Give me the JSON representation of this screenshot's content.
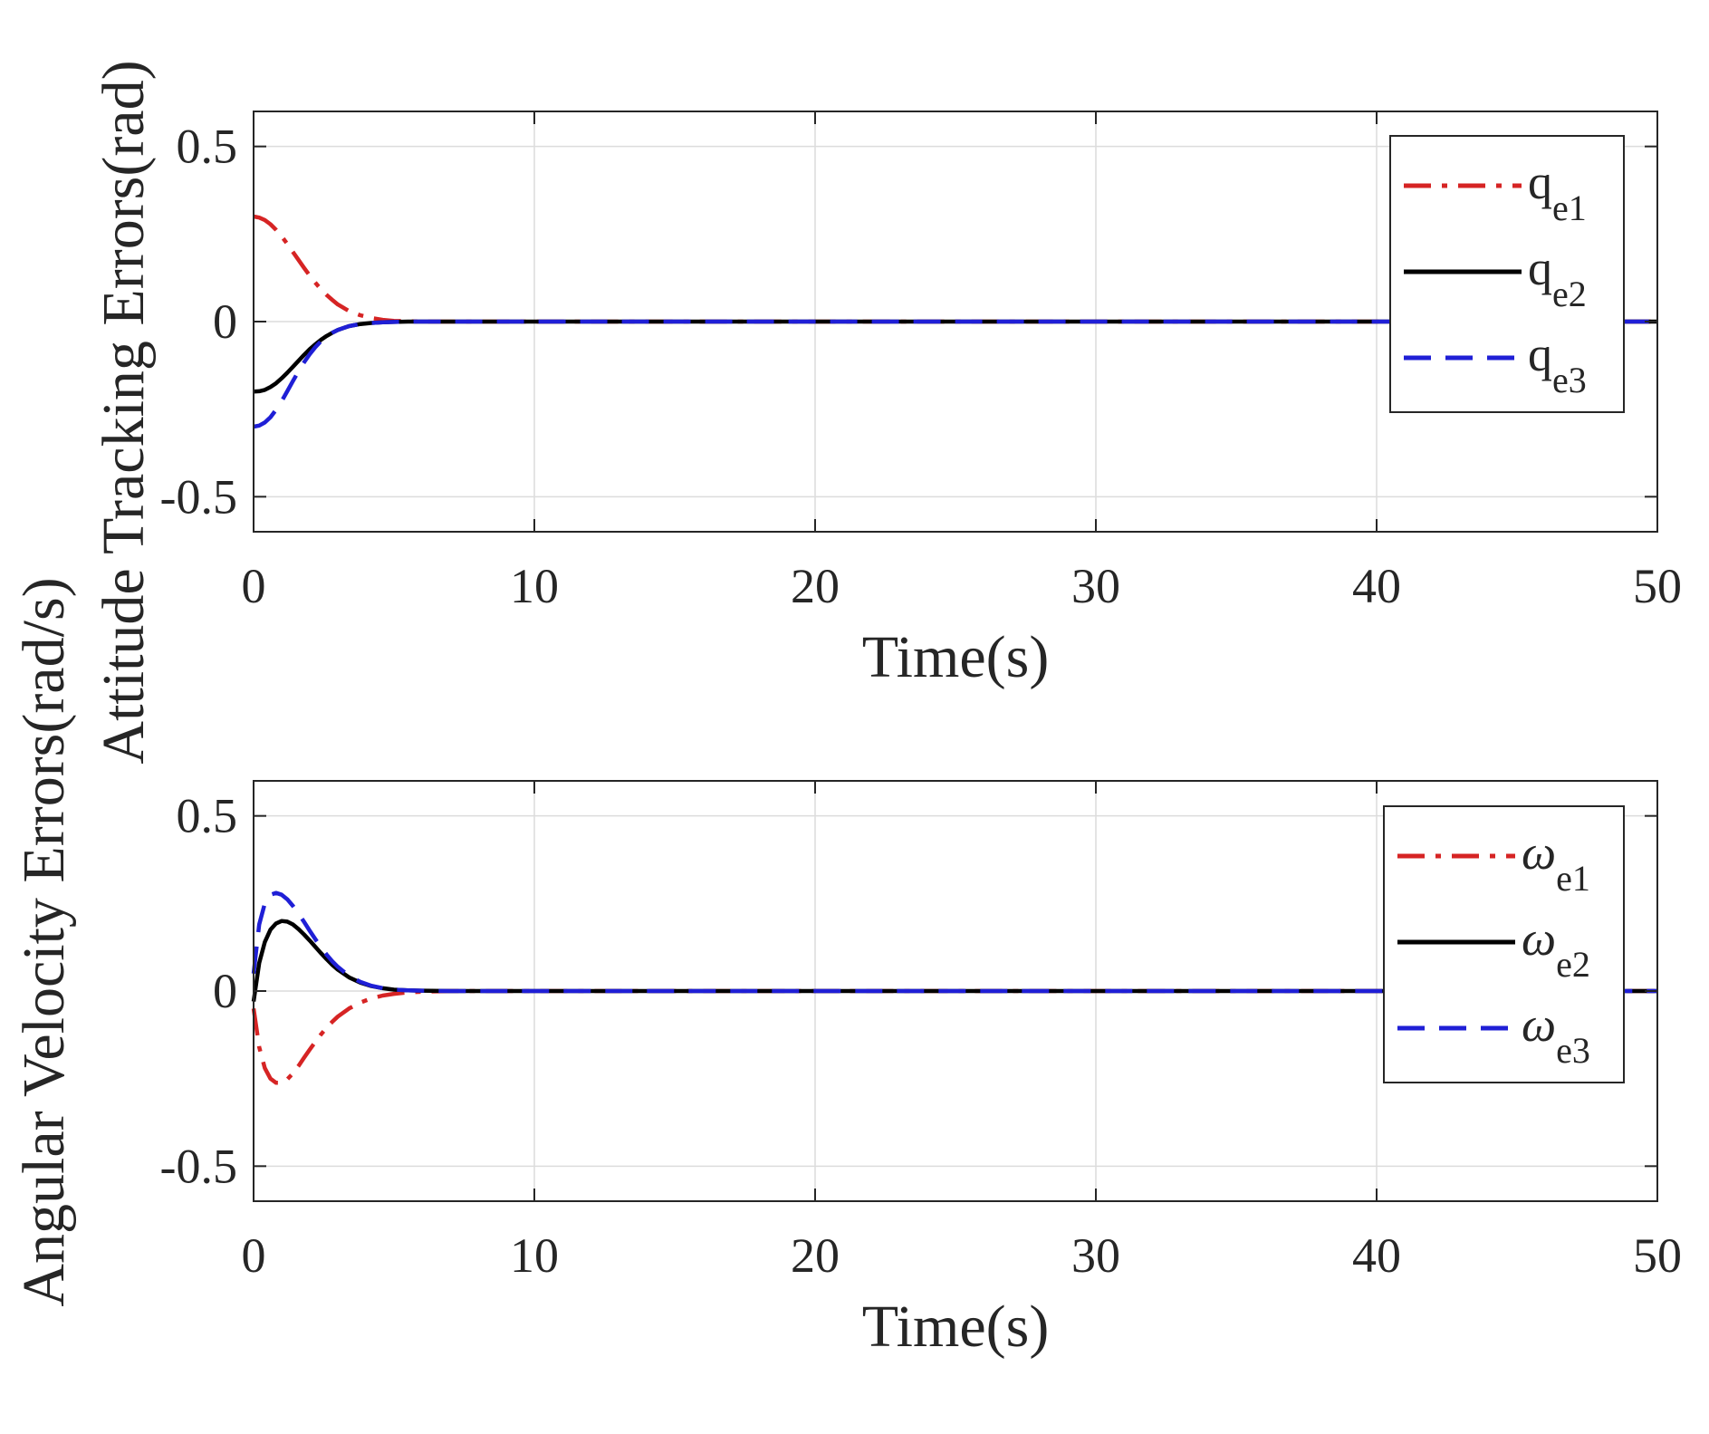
{
  "chart_data": [
    {
      "type": "line",
      "xlabel": "Time(s)",
      "ylabel": "Attitude Tracking Errors(rad)",
      "xlim": [
        0,
        50
      ],
      "ylim": [
        -0.6,
        0.6
      ],
      "xticks": [
        0,
        10,
        20,
        30,
        40,
        50
      ],
      "yticks": [
        -0.5,
        0,
        0.5
      ],
      "xtick_labels": [
        "0",
        "10",
        "20",
        "30",
        "40",
        "50"
      ],
      "ytick_labels": [
        "-0.5",
        "0",
        "0.5"
      ],
      "grid": true,
      "legend_position": "top-right",
      "series": [
        {
          "name": "q_e1",
          "label_main": "q",
          "label_sub": "e1",
          "color": "#d62424",
          "style": "dashdot",
          "x": [
            0,
            0.2,
            0.4,
            0.6,
            0.8,
            1.0,
            1.2,
            1.4,
            1.6,
            1.8,
            2.0,
            2.2,
            2.4,
            2.6,
            2.8,
            3.0,
            3.4,
            3.8,
            4.2,
            4.6,
            5.0,
            5.5,
            6.0,
            7.0,
            8.0,
            10,
            15,
            20,
            25,
            30,
            35,
            40,
            45,
            50
          ],
          "y": [
            0.3,
            0.297,
            0.29,
            0.278,
            0.262,
            0.243,
            0.222,
            0.199,
            0.176,
            0.153,
            0.131,
            0.111,
            0.092,
            0.076,
            0.062,
            0.049,
            0.03,
            0.018,
            0.01,
            0.005,
            0.002,
            0.001,
            0.0,
            0.0,
            0.0,
            0.0,
            0.0,
            0.0,
            0.0,
            0.0,
            0.0,
            0.0,
            0.0,
            0.0
          ]
        },
        {
          "name": "q_e2",
          "label_main": "q",
          "label_sub": "e2",
          "color": "#000000",
          "style": "solid",
          "x": [
            0,
            0.2,
            0.4,
            0.6,
            0.8,
            1.0,
            1.2,
            1.4,
            1.6,
            1.8,
            2.0,
            2.2,
            2.4,
            2.6,
            2.8,
            3.0,
            3.4,
            3.8,
            4.2,
            4.6,
            5.0,
            5.5,
            6.0,
            7.0,
            8.0,
            10,
            15,
            20,
            25,
            30,
            35,
            40,
            45,
            50
          ],
          "y": [
            -0.2,
            -0.199,
            -0.195,
            -0.187,
            -0.176,
            -0.162,
            -0.146,
            -0.129,
            -0.112,
            -0.095,
            -0.079,
            -0.065,
            -0.052,
            -0.041,
            -0.032,
            -0.024,
            -0.013,
            -0.007,
            -0.004,
            -0.002,
            -0.001,
            0.0,
            0.0,
            0.0,
            0.0,
            0.0,
            0.0,
            0.0,
            0.0,
            0.0,
            0.0,
            0.0,
            0.0,
            0.0
          ]
        },
        {
          "name": "q_e3",
          "label_main": "q",
          "label_sub": "e3",
          "color": "#1f1fd6",
          "style": "dashed",
          "x": [
            0,
            0.2,
            0.4,
            0.6,
            0.8,
            1.0,
            1.2,
            1.4,
            1.6,
            1.8,
            2.0,
            2.2,
            2.4,
            2.6,
            2.8,
            3.0,
            3.4,
            3.8,
            4.2,
            4.6,
            5.0,
            5.5,
            6.0,
            7.0,
            8.0,
            10,
            15,
            20,
            25,
            30,
            35,
            40,
            45,
            50
          ],
          "y": [
            -0.3,
            -0.297,
            -0.288,
            -0.273,
            -0.252,
            -0.227,
            -0.199,
            -0.17,
            -0.142,
            -0.116,
            -0.093,
            -0.073,
            -0.056,
            -0.043,
            -0.032,
            -0.024,
            -0.013,
            -0.007,
            -0.004,
            -0.002,
            -0.001,
            0.0,
            0.0,
            0.0,
            0.0,
            0.0,
            0.0,
            0.0,
            0.0,
            0.0,
            0.0,
            0.0,
            0.0,
            0.0
          ]
        }
      ]
    },
    {
      "type": "line",
      "xlabel": "Time(s)",
      "ylabel": "Angular Velocity Errors(rad/s)",
      "xlim": [
        0,
        50
      ],
      "ylim": [
        -0.6,
        0.6
      ],
      "xticks": [
        0,
        10,
        20,
        30,
        40,
        50
      ],
      "yticks": [
        -0.5,
        0,
        0.5
      ],
      "xtick_labels": [
        "0",
        "10",
        "20",
        "30",
        "40",
        "50"
      ],
      "ytick_labels": [
        "-0.5",
        "0",
        "0.5"
      ],
      "grid": true,
      "legend_position": "top-right",
      "series": [
        {
          "name": "ω_e1",
          "label_main": "ω",
          "label_sub": "e1",
          "color": "#d62424",
          "style": "dashdot",
          "x": [
            0,
            0.2,
            0.4,
            0.6,
            0.8,
            1.0,
            1.2,
            1.4,
            1.6,
            1.8,
            2.0,
            2.2,
            2.4,
            2.6,
            2.8,
            3.0,
            3.4,
            3.8,
            4.2,
            4.6,
            5.0,
            5.5,
            6.0,
            7.0,
            8.0,
            10,
            15,
            20,
            25,
            30,
            35,
            40,
            45,
            50
          ],
          "y": [
            -0.05,
            -0.16,
            -0.22,
            -0.25,
            -0.262,
            -0.262,
            -0.252,
            -0.235,
            -0.214,
            -0.19,
            -0.167,
            -0.145,
            -0.124,
            -0.105,
            -0.088,
            -0.073,
            -0.05,
            -0.033,
            -0.021,
            -0.013,
            -0.008,
            -0.004,
            -0.002,
            0.0,
            0.0,
            0.0,
            0.0,
            0.0,
            0.0,
            0.0,
            0.0,
            0.0,
            0.0,
            0.0
          ]
        },
        {
          "name": "ω_e2",
          "label_main": "ω",
          "label_sub": "e2",
          "color": "#000000",
          "style": "solid",
          "x": [
            0,
            0.2,
            0.4,
            0.6,
            0.8,
            1.0,
            1.2,
            1.4,
            1.6,
            1.8,
            2.0,
            2.2,
            2.4,
            2.6,
            2.8,
            3.0,
            3.4,
            3.8,
            4.2,
            4.6,
            5.0,
            5.5,
            6.0,
            7.0,
            8.0,
            10,
            15,
            20,
            25,
            30,
            35,
            40,
            45,
            50
          ],
          "y": [
            -0.03,
            0.08,
            0.14,
            0.175,
            0.193,
            0.2,
            0.198,
            0.19,
            0.177,
            0.161,
            0.144,
            0.126,
            0.108,
            0.091,
            0.075,
            0.061,
            0.039,
            0.024,
            0.014,
            0.008,
            0.004,
            0.002,
            0.001,
            0.0,
            0.0,
            0.0,
            0.0,
            0.0,
            0.0,
            0.0,
            0.0,
            0.0,
            0.0,
            0.0
          ]
        },
        {
          "name": "ω_e3",
          "label_main": "ω",
          "label_sub": "e3",
          "color": "#1f1fd6",
          "style": "dashed",
          "x": [
            0,
            0.2,
            0.4,
            0.6,
            0.8,
            1.0,
            1.2,
            1.4,
            1.6,
            1.8,
            2.0,
            2.2,
            2.4,
            2.6,
            2.8,
            3.0,
            3.4,
            3.8,
            4.2,
            4.6,
            5.0,
            5.5,
            6.0,
            7.0,
            8.0,
            10,
            15,
            20,
            25,
            30,
            35,
            40,
            45,
            50
          ],
          "y": [
            0.05,
            0.19,
            0.25,
            0.275,
            0.28,
            0.275,
            0.262,
            0.243,
            0.221,
            0.197,
            0.172,
            0.148,
            0.125,
            0.104,
            0.085,
            0.069,
            0.043,
            0.026,
            0.015,
            0.008,
            0.004,
            0.002,
            0.001,
            0.0,
            0.0,
            0.0,
            0.0,
            0.0,
            0.0,
            0.0,
            0.0,
            0.0,
            0.0,
            0.0
          ]
        }
      ]
    }
  ]
}
